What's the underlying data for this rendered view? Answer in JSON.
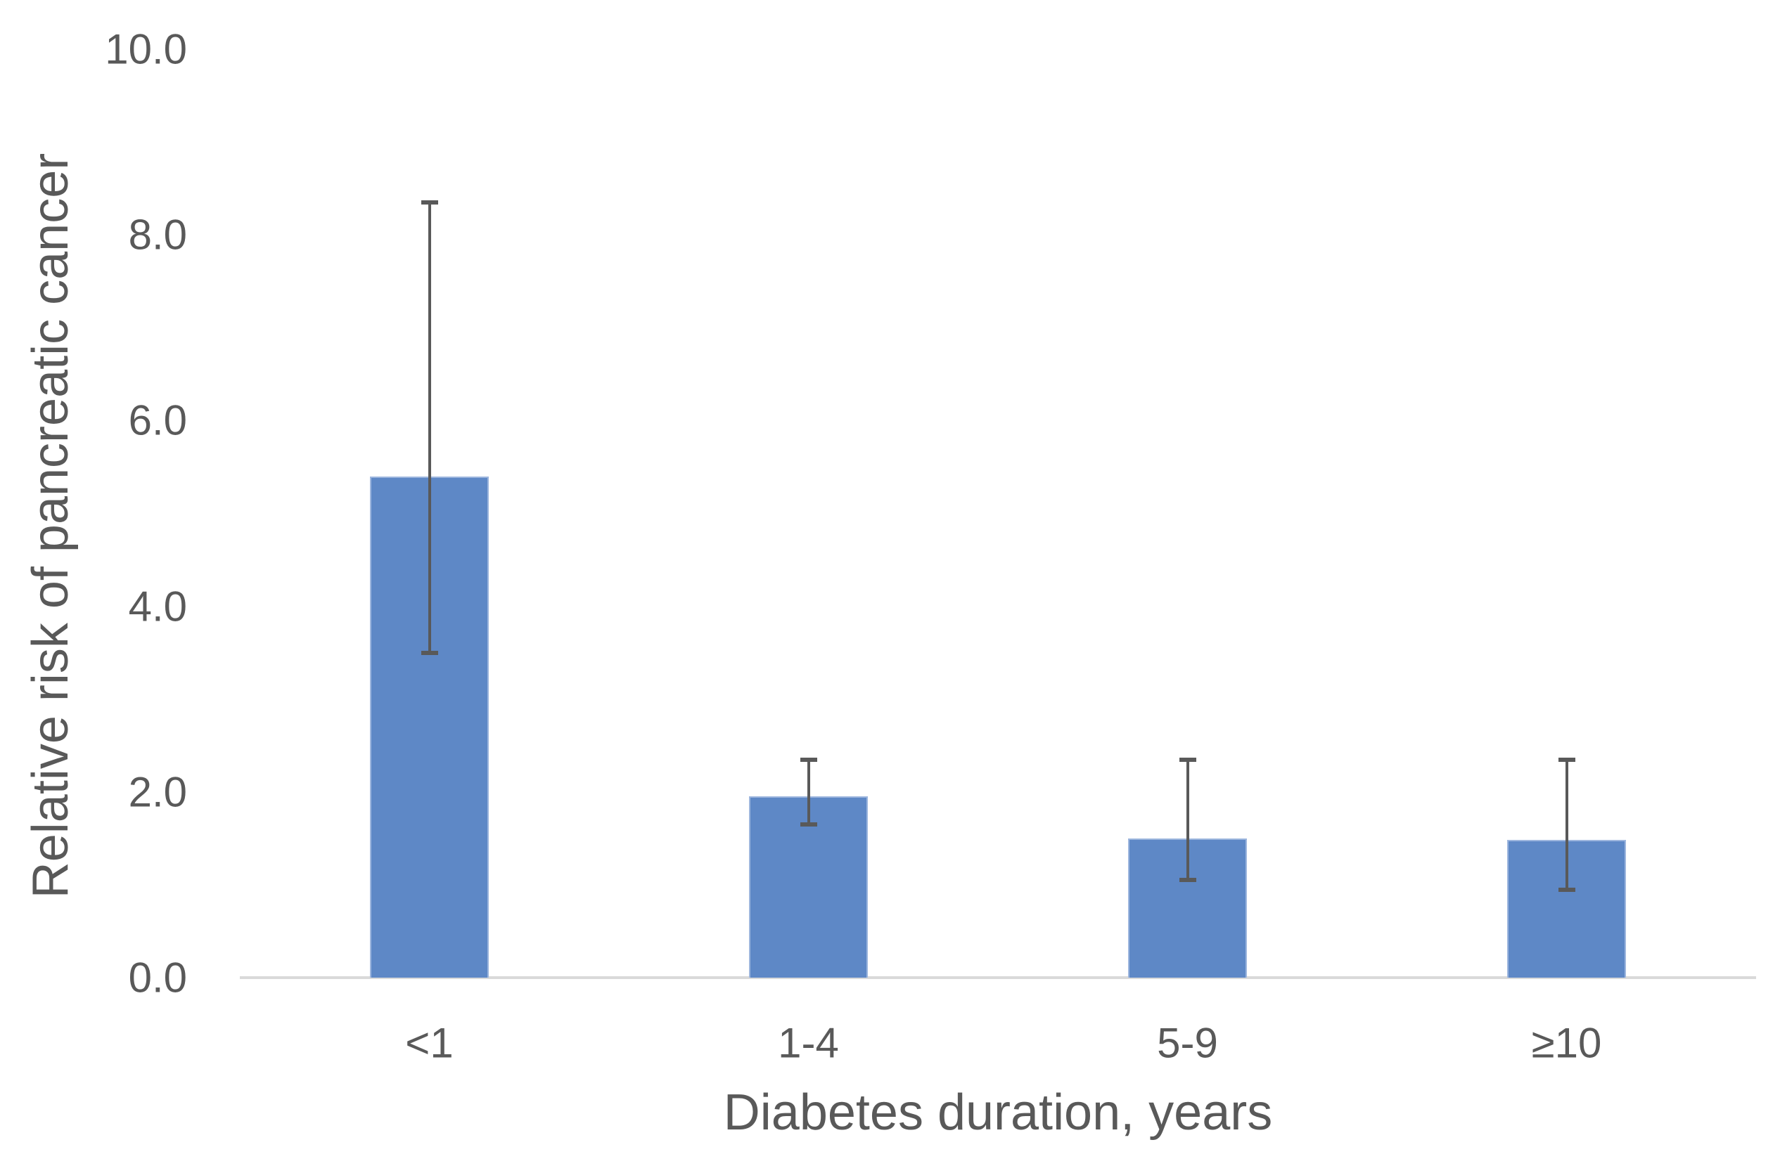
{
  "chart_data": {
    "type": "bar",
    "title": "",
    "xlabel": "Diabetes duration, years",
    "ylabel": "Relative risk of pancreatic cancer",
    "categories": [
      "<1",
      "1-4",
      "5-9",
      "≥10"
    ],
    "series": [
      {
        "name": "Relative risk of pancreatic cancer",
        "values": [
          5.4,
          1.95,
          1.5,
          1.48
        ],
        "ci_low": [
          3.5,
          1.65,
          1.05,
          0.95
        ],
        "ci_high": [
          8.35,
          2.35,
          2.35,
          2.35
        ]
      }
    ],
    "error_bars": true,
    "ylim": [
      0,
      10
    ],
    "yticks": [
      0,
      2,
      4,
      6,
      8,
      10
    ],
    "ytick_labels": [
      "0.0",
      "2.0",
      "4.0",
      "6.0",
      "8.0",
      "10.0"
    ],
    "grid": false,
    "legend": false,
    "colors": {
      "bar_fill": "#5E88C6",
      "bar_edge": "#9DB6DE",
      "error_bar": "#595959",
      "axis_line": "#D9D9D9",
      "text": "#595959",
      "background": "#FFFFFF"
    }
  }
}
